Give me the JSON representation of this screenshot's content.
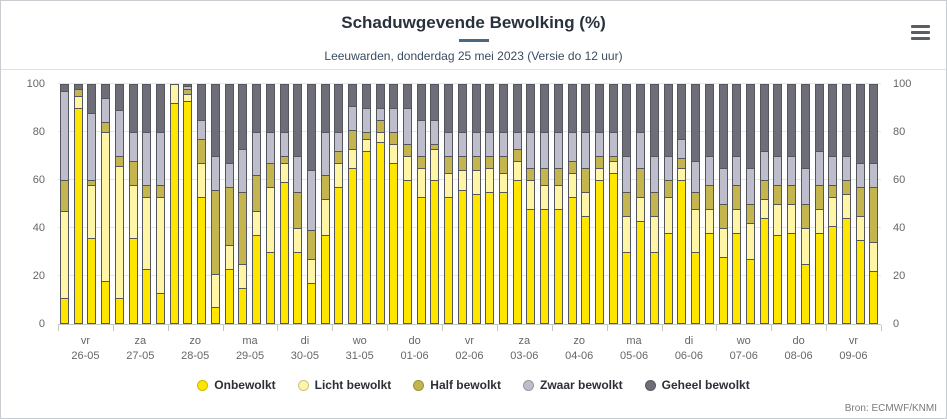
{
  "chart_data": {
    "type": "bar",
    "stacked": true,
    "stack_total": 100,
    "title": "Schaduwgevende Bewolking (%)",
    "subtitle": "Leeuwarden, donderdag 25 mei 2023 (Versie do 12 uur)",
    "ylim": [
      0,
      100
    ],
    "yticks": [
      0,
      20,
      40,
      60,
      80,
      100
    ],
    "grid": true,
    "legend_position": "bottom",
    "bars_per_day": 4,
    "categories": [
      {
        "weekday": "vr",
        "date": "26-05"
      },
      {
        "weekday": "za",
        "date": "27-05"
      },
      {
        "weekday": "zo",
        "date": "28-05"
      },
      {
        "weekday": "ma",
        "date": "29-05"
      },
      {
        "weekday": "di",
        "date": "30-05"
      },
      {
        "weekday": "wo",
        "date": "31-05"
      },
      {
        "weekday": "do",
        "date": "01-06"
      },
      {
        "weekday": "vr",
        "date": "02-06"
      },
      {
        "weekday": "za",
        "date": "03-06"
      },
      {
        "weekday": "zo",
        "date": "04-06"
      },
      {
        "weekday": "ma",
        "date": "05-06"
      },
      {
        "weekday": "di",
        "date": "06-06"
      },
      {
        "weekday": "wo",
        "date": "07-06"
      },
      {
        "weekday": "do",
        "date": "08-06"
      },
      {
        "weekday": "vr",
        "date": "09-06"
      }
    ],
    "series": [
      {
        "name": "Onbewolkt",
        "color": "#ffe600",
        "values": [
          11,
          90,
          36,
          18,
          11,
          36,
          23,
          13,
          92,
          93,
          53,
          7,
          23,
          15,
          37,
          30,
          59,
          30,
          17,
          37,
          57,
          65,
          72,
          76,
          67,
          60,
          53,
          60,
          53,
          56,
          54,
          55,
          55,
          60,
          48,
          48,
          48,
          53,
          45,
          60,
          63,
          30,
          43,
          30,
          38,
          60,
          30,
          38,
          28,
          38,
          27,
          44,
          37,
          38,
          25,
          38,
          41,
          44,
          35,
          22
        ]
      },
      {
        "name": "Licht bewolkt",
        "color": "#fff5a6",
        "values": [
          36,
          5,
          22,
          62,
          55,
          22,
          30,
          40,
          8,
          3,
          14,
          14,
          10,
          10,
          10,
          27,
          8,
          10,
          10,
          15,
          10,
          8,
          5,
          4,
          8,
          10,
          12,
          13,
          10,
          8,
          10,
          10,
          8,
          8,
          12,
          10,
          10,
          10,
          10,
          5,
          5,
          15,
          10,
          15,
          15,
          5,
          18,
          10,
          12,
          10,
          15,
          8,
          13,
          12,
          15,
          10,
          12,
          10,
          10,
          12
        ]
      },
      {
        "name": "Half bewolkt",
        "color": "#c4b54e",
        "values": [
          13,
          3,
          2,
          4,
          4,
          10,
          5,
          5,
          0,
          2,
          10,
          35,
          24,
          30,
          15,
          10,
          3,
          15,
          12,
          10,
          5,
          8,
          3,
          5,
          5,
          5,
          5,
          2,
          7,
          6,
          6,
          5,
          7,
          5,
          5,
          7,
          7,
          5,
          10,
          5,
          2,
          10,
          12,
          10,
          7,
          4,
          7,
          10,
          10,
          10,
          8,
          8,
          8,
          8,
          10,
          10,
          5,
          6,
          12,
          23
        ]
      },
      {
        "name": "Zwaar bewolkt",
        "color": "#bdbdcb",
        "values": [
          37,
          0,
          28,
          10,
          19,
          12,
          22,
          22,
          0,
          1,
          8,
          14,
          10,
          18,
          18,
          13,
          10,
          15,
          25,
          18,
          8,
          10,
          10,
          5,
          10,
          15,
          15,
          10,
          10,
          10,
          10,
          10,
          10,
          7,
          15,
          15,
          15,
          12,
          15,
          10,
          10,
          15,
          15,
          15,
          10,
          8,
          13,
          12,
          15,
          12,
          15,
          12,
          12,
          12,
          15,
          14,
          12,
          10,
          10,
          10
        ]
      },
      {
        "name": "Geheel bewolkt",
        "color": "#6e6e79",
        "values": [
          3,
          2,
          12,
          6,
          11,
          20,
          20,
          20,
          0,
          1,
          15,
          30,
          33,
          27,
          20,
          20,
          20,
          30,
          36,
          20,
          20,
          9,
          10,
          10,
          10,
          10,
          15,
          15,
          20,
          20,
          20,
          20,
          20,
          20,
          20,
          20,
          20,
          20,
          20,
          20,
          20,
          30,
          20,
          30,
          30,
          23,
          32,
          30,
          35,
          30,
          35,
          28,
          30,
          30,
          35,
          28,
          30,
          30,
          33,
          33
        ]
      }
    ]
  },
  "footer": {
    "source": "Bron: ECMWF/KNMI"
  },
  "icons": {
    "menu": "hamburger-menu-icon"
  },
  "colors": {
    "bar_border": "#53565c",
    "grid": "#e7e7e7",
    "axis": "#c6c6c6",
    "title": "#29323c",
    "subtitle": "#3a4c61",
    "tick_label": "#666666"
  }
}
